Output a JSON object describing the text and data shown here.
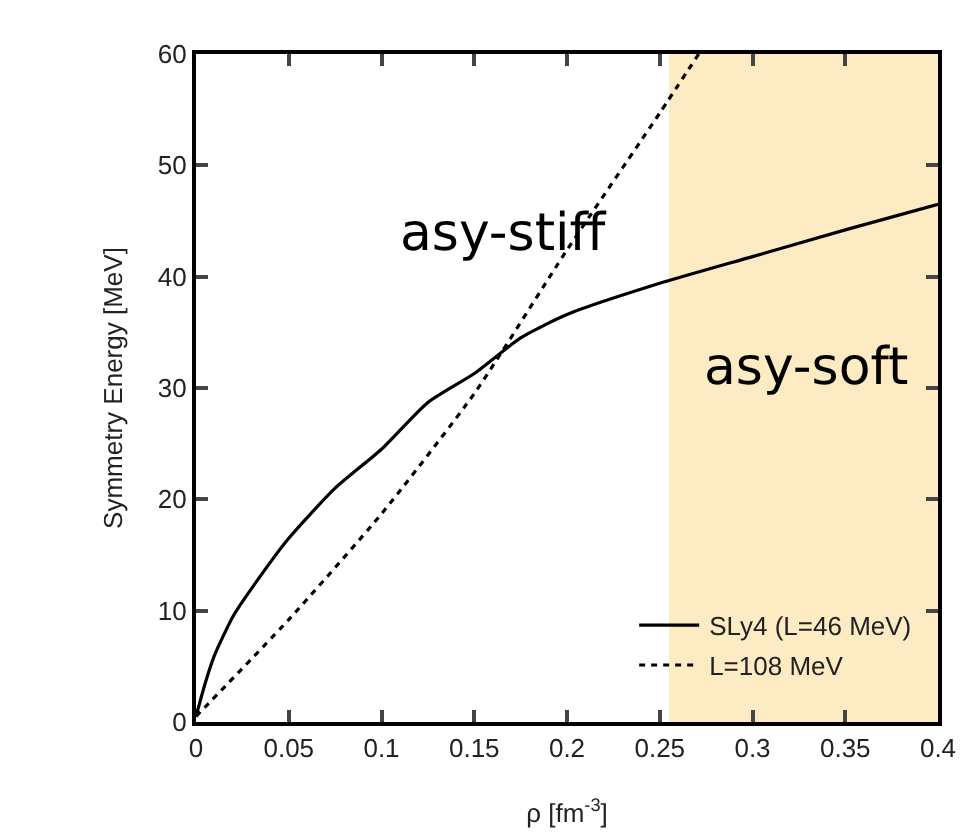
{
  "chart_data": {
    "type": "line",
    "xlabel": "ρ [fm$^{-3}$]",
    "ylabel": "Symmetry Energy [MeV]",
    "xlim": [
      0,
      0.4
    ],
    "xticks": [
      0,
      0.05,
      0.1,
      0.15,
      0.2,
      0.25,
      0.3,
      0.35,
      0.4
    ],
    "ylim": [
      0,
      60
    ],
    "yticks": [
      0,
      10,
      20,
      30,
      40,
      50,
      60
    ],
    "grid": false,
    "legend": "bottom right",
    "marker": "none",
    "series": [
      {
        "name": "SLy4 (L=46 MeV)",
        "color": "#000000",
        "line_style": "solid",
        "x": [
          0,
          0.005,
          0.01,
          0.02,
          0.03,
          0.05,
          0.075,
          0.1,
          0.125,
          0.15,
          0.175,
          0.2,
          0.25,
          0.3,
          0.35,
          0.4
        ],
        "values": [
          0.5,
          3.5,
          6,
          9.5,
          12,
          16.5,
          21,
          24.5,
          28.7,
          31.3,
          34.5,
          36.6,
          39.4,
          41.8,
          44.2,
          46.5
        ]
      },
      {
        "name": "L=108 MeV",
        "color": "#000000",
        "line_style": "dotted",
        "x": [
          0,
          0.05,
          0.1,
          0.15,
          0.2,
          0.25,
          0.271
        ],
        "values": [
          0.5,
          9.2,
          18.7,
          29.5,
          42.4,
          54.7,
          60
        ]
      }
    ],
    "bands": [
      {
        "axis": "x",
        "from": 0.255,
        "to": 0.4,
        "color": "#fdebc3"
      }
    ],
    "annotations": [
      "asy-stiff",
      "asy-soft"
    ]
  }
}
